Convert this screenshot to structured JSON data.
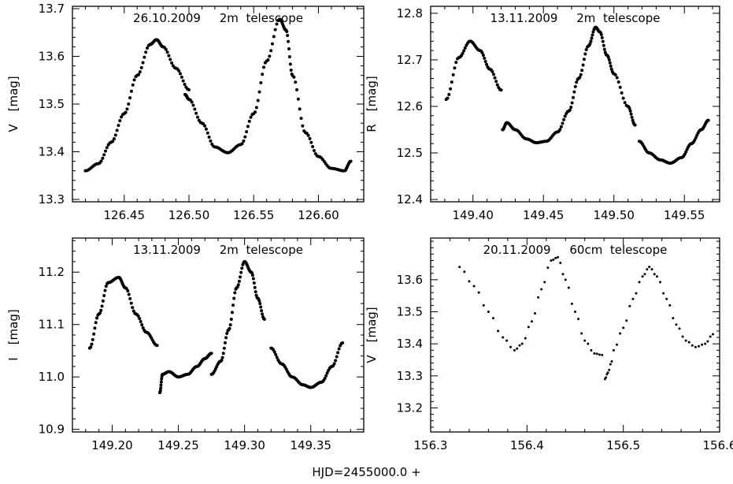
{
  "figure": {
    "xlabel": "HJD=2455000.0 +"
  },
  "chart_data": [
    {
      "type": "scatter",
      "title": "26.10.2009     2m  telescope",
      "ylabel_name": "V",
      "ylabel_unit": "[mag]",
      "xlim": [
        126.41,
        126.635
      ],
      "ylim": [
        13.705,
        13.295
      ],
      "xticks": [
        126.45,
        126.5,
        126.55,
        126.6
      ],
      "xtick_labels": [
        "126.45",
        "126.50",
        "126.55",
        "126.60"
      ],
      "yticks": [
        13.3,
        13.4,
        13.5,
        13.6,
        13.7
      ],
      "ytick_labels": [
        "13.3",
        "13.4",
        "13.5",
        "13.6",
        "13.7"
      ],
      "series": [
        {
          "segments": [
            {
              "x": [
                126.42,
                126.43,
                126.44,
                126.45,
                126.46,
                126.47,
                126.475,
                126.48,
                126.49,
                126.5
              ],
              "y": [
                13.36,
                13.375,
                13.42,
                13.48,
                13.56,
                13.625,
                13.635,
                13.62,
                13.575,
                13.53
              ]
            },
            {
              "x": [
                126.497,
                126.5,
                126.51,
                126.52,
                126.53,
                126.54,
                126.55,
                126.56,
                126.57,
                126.575,
                126.58,
                126.59,
                126.6,
                126.61,
                126.62,
                126.625
              ],
              "y": [
                13.52,
                13.51,
                13.46,
                13.41,
                13.398,
                13.415,
                13.48,
                13.59,
                13.678,
                13.655,
                13.56,
                13.44,
                13.39,
                13.365,
                13.36,
                13.38
              ]
            }
          ]
        }
      ]
    },
    {
      "type": "scatter",
      "title": "13.11.2009     2m  telescope",
      "ylabel_name": "R",
      "ylabel_unit": "[mag]",
      "xlim": [
        149.37,
        149.575
      ],
      "ylim": [
        12.815,
        12.395
      ],
      "xticks": [
        149.4,
        149.45,
        149.5,
        149.55
      ],
      "xtick_labels": [
        "149.40",
        "149.45",
        "149.50",
        "149.55"
      ],
      "yticks": [
        12.4,
        12.5,
        12.6,
        12.7,
        12.8
      ],
      "ytick_labels": [
        "12.4",
        "12.5",
        "12.6",
        "12.7",
        "12.8"
      ],
      "series": [
        {
          "segments": [
            {
              "x": [
                149.381,
                149.39,
                149.398,
                149.405,
                149.412,
                149.42
              ],
              "y": [
                12.615,
                12.705,
                12.74,
                12.72,
                12.68,
                12.635
              ]
            },
            {
              "x": [
                149.421,
                149.424,
                149.43,
                149.438,
                149.445,
                149.452,
                149.46,
                149.468,
                149.475,
                149.482,
                149.487,
                149.49,
                149.495,
                149.5,
                149.51,
                149.515
              ],
              "y": [
                12.55,
                12.565,
                12.55,
                12.53,
                12.522,
                12.525,
                12.545,
                12.59,
                12.66,
                12.73,
                12.77,
                12.76,
                12.71,
                12.67,
                12.6,
                12.56
              ]
            },
            {
              "x": [
                149.518,
                149.525,
                149.533,
                149.54,
                149.548,
                149.555,
                149.562,
                149.567
              ],
              "y": [
                12.525,
                12.5,
                12.485,
                12.478,
                12.49,
                12.52,
                12.55,
                12.57
              ]
            }
          ]
        }
      ]
    },
    {
      "type": "scatter",
      "title": "13.11.2009     2m  telescope",
      "ylabel_name": "I",
      "ylabel_unit": "[mag]",
      "xlim": [
        149.17,
        149.39
      ],
      "ylim": [
        11.265,
        10.895
      ],
      "xticks": [
        149.2,
        149.25,
        149.3,
        149.35
      ],
      "xtick_labels": [
        "149.20",
        "149.25",
        "149.30",
        "149.35"
      ],
      "yticks": [
        10.9,
        11.0,
        11.1,
        11.2
      ],
      "ytick_labels": [
        "10.9",
        "11.0",
        "11.1",
        "11.2"
      ],
      "series": [
        {
          "segments": [
            {
              "x": [
                149.183,
                149.19,
                149.197,
                149.205,
                149.21,
                149.218,
                149.226,
                149.234
              ],
              "y": [
                11.055,
                11.12,
                11.18,
                11.19,
                11.17,
                11.12,
                11.085,
                11.06
              ]
            },
            {
              "x": [
                149.236,
                149.238,
                149.243,
                149.25,
                149.257,
                149.264,
                149.27,
                149.275
              ],
              "y": [
                10.97,
                11.005,
                11.01,
                11.0,
                11.005,
                11.02,
                11.035,
                11.045
              ]
            },
            {
              "x": [
                149.275,
                149.282,
                149.288,
                149.294,
                149.3,
                149.305,
                149.31,
                149.315
              ],
              "y": [
                11.005,
                11.03,
                11.09,
                11.17,
                11.22,
                11.2,
                11.15,
                11.11
              ]
            },
            {
              "x": [
                149.32,
                149.328,
                149.336,
                149.344,
                149.35,
                149.358,
                149.366,
                149.374
              ],
              "y": [
                11.055,
                11.025,
                11.0,
                10.985,
                10.98,
                10.99,
                11.02,
                11.065
              ]
            }
          ]
        }
      ]
    },
    {
      "type": "scatter",
      "title": "20.11.2009     60cm  telescope",
      "ylabel_name": "V",
      "ylabel_unit": "[mag]",
      "xlim": [
        156.3,
        156.6
      ],
      "ylim": [
        13.73,
        13.125
      ],
      "xticks": [
        156.3,
        156.4,
        156.5,
        156.6
      ],
      "xtick_labels": [
        "156.3",
        "156.4",
        "156.5",
        "156.6"
      ],
      "yticks": [
        13.2,
        13.3,
        13.4,
        13.5,
        13.6
      ],
      "ytick_labels": [
        "13.2",
        "13.3",
        "13.4",
        "13.5",
        "13.6"
      ],
      "series": [
        {
          "segments": [
            {
              "x": [
                156.33,
                156.345,
                156.36,
                156.375,
                156.387,
                156.395,
                156.405,
                156.415,
                156.425,
                156.432,
                156.44,
                156.45,
                156.46,
                156.47,
                156.478
              ],
              "y": [
                13.64,
                13.58,
                13.5,
                13.42,
                13.38,
                13.4,
                13.47,
                13.57,
                13.66,
                13.67,
                13.6,
                13.5,
                13.41,
                13.37,
                13.365
              ]
            },
            {
              "x": [
                156.481,
                156.484,
                156.488
              ],
              "y": [
                13.29,
                13.31,
                13.345
              ]
            },
            {
              "x": [
                156.49,
                156.5,
                156.51,
                156.52,
                156.527,
                156.535,
                156.545,
                156.555,
                156.565,
                156.575,
                156.585,
                156.593
              ],
              "y": [
                13.38,
                13.45,
                13.54,
                13.61,
                13.64,
                13.61,
                13.54,
                13.46,
                13.41,
                13.39,
                13.4,
                13.43
              ]
            }
          ]
        }
      ]
    }
  ]
}
